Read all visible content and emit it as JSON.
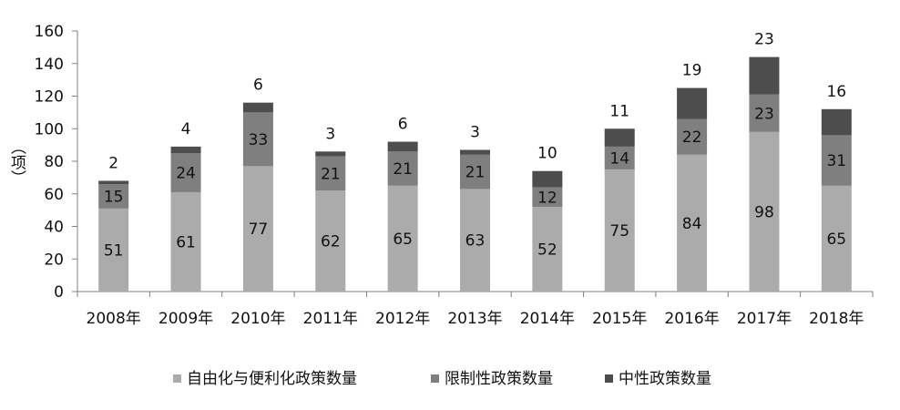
{
  "chart_data": {
    "type": "bar",
    "stacked": true,
    "categories": [
      "2008年",
      "2009年",
      "2010年",
      "2011年",
      "2012年",
      "2013年",
      "2014年",
      "2015年",
      "2016年",
      "2017年",
      "2018年"
    ],
    "series": [
      {
        "name": "自由化与便利化政策数量",
        "color": "#ababab",
        "values": [
          51,
          61,
          77,
          62,
          65,
          63,
          52,
          75,
          84,
          98,
          65
        ]
      },
      {
        "name": "限制性政策数量",
        "color": "#7f7f7f",
        "values": [
          15,
          24,
          33,
          21,
          21,
          21,
          12,
          14,
          22,
          23,
          31
        ]
      },
      {
        "name": "中性政策数量",
        "color": "#4d4d4d",
        "values": [
          2,
          4,
          6,
          3,
          6,
          3,
          10,
          11,
          19,
          23,
          16
        ]
      }
    ],
    "ylabel": "（项）",
    "ylim": [
      0,
      160
    ],
    "yticks": [
      0,
      20,
      40,
      60,
      80,
      100,
      120,
      140,
      160
    ],
    "grid": false,
    "legend": "bottom"
  }
}
